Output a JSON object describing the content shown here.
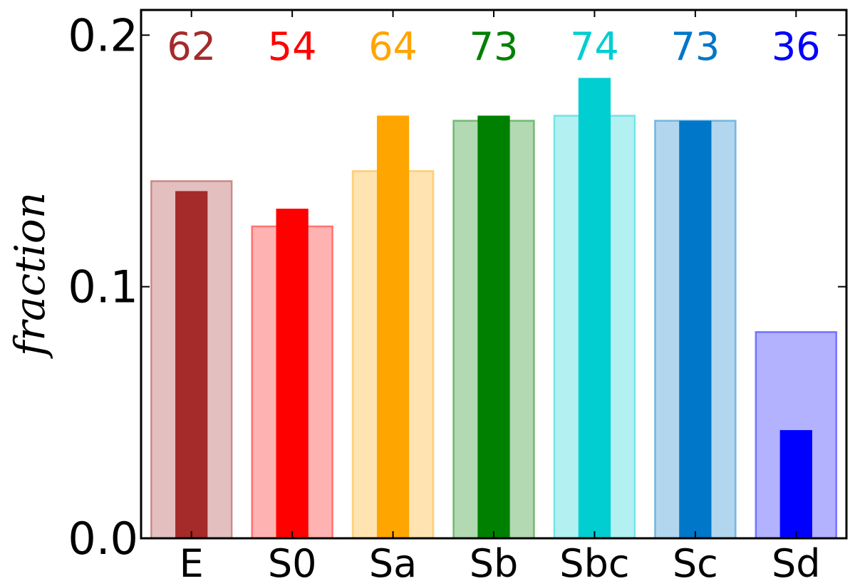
{
  "chart_data": {
    "type": "bar",
    "categories": [
      "E",
      "S0",
      "Sa",
      "Sb",
      "Sbc",
      "Sc",
      "Sd"
    ],
    "counts": [
      "62",
      "54",
      "64",
      "73",
      "74",
      "73",
      "36"
    ],
    "colors": [
      "#a52a2a",
      "#ff0000",
      "#ffa500",
      "#008000",
      "#00ced1",
      "#0077c8",
      "#0000ff"
    ],
    "series": [
      {
        "values": [
          0.142,
          0.124,
          0.146,
          0.166,
          0.168,
          0.166,
          0.082
        ]
      },
      {
        "values": [
          0.138,
          0.131,
          0.168,
          0.168,
          0.183,
          0.166,
          0.043
        ]
      }
    ],
    "ylabel": "fraction",
    "xlabel": "",
    "ylim": [
      0,
      0.21
    ],
    "yticks": [
      "0.0",
      "0.1",
      "0.2"
    ],
    "ytick_values": [
      0,
      0.1,
      0.2
    ],
    "grid": false,
    "legend": "none"
  }
}
